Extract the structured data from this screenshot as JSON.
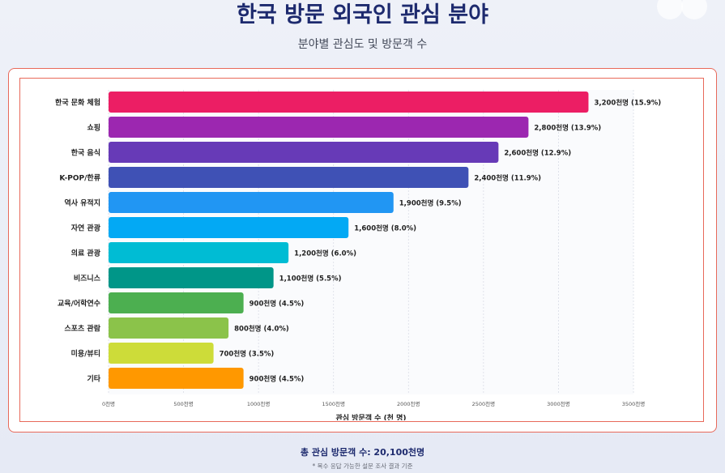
{
  "header": {
    "title": "한국 방문 외국인 관심 분야",
    "subtitle": "분야별 관심도 및 방문객 수"
  },
  "footer": {
    "total": "총 관심 방문객 수: 20,100천명",
    "note": "* 복수 응답 가능한 설문 조사 결과 기준"
  },
  "chart_data": {
    "type": "bar",
    "orientation": "horizontal",
    "categories": [
      "한국 문화 체험",
      "쇼핑",
      "한국 음식",
      "K-POP/한류",
      "역사 유적지",
      "자연 관광",
      "의료 관광",
      "비즈니스",
      "교육/어학연수",
      "스포츠 관람",
      "미용/뷰티",
      "기타"
    ],
    "values": [
      3200,
      2800,
      2600,
      2400,
      1900,
      1600,
      1200,
      1100,
      900,
      800,
      700,
      900
    ],
    "data_labels": [
      "3,200천명 (15.9%)",
      "2,800천명 (13.9%)",
      "2,600천명 (12.9%)",
      "2,400천명 (11.9%)",
      "1,900천명 (9.5%)",
      "1,600천명 (8.0%)",
      "1,200천명 (6.0%)",
      "1,100천명 (5.5%)",
      "900천명 (4.5%)",
      "800천명 (4.0%)",
      "700천명 (3.5%)",
      "900천명 (4.5%)"
    ],
    "colors": [
      "#ec1e64",
      "#9c27b0",
      "#673ab7",
      "#3f51b5",
      "#2196f3",
      "#03a9f4",
      "#00bcd4",
      "#009688",
      "#4caf50",
      "#8bc34a",
      "#cddc39",
      "#ff9800"
    ],
    "xlabel": "관심 방문객 수 (천 명)",
    "xlim": [
      0,
      3500
    ],
    "xticks": [
      0,
      500,
      1000,
      1500,
      2000,
      2500,
      3000,
      3500
    ],
    "xtick_labels": [
      "0천명",
      "500천명",
      "1000천명",
      "1500천명",
      "2000천명",
      "2500천명",
      "3000천명",
      "3500천명"
    ],
    "grid": "vertical dashed"
  }
}
